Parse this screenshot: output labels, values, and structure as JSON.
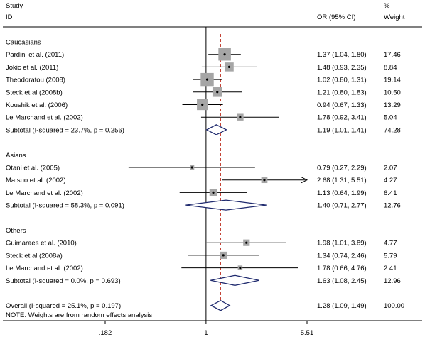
{
  "header": {
    "study": "Study",
    "id": "ID",
    "or_ci": "OR (95% CI)",
    "pct": "%",
    "weight": "Weight"
  },
  "note": "NOTE: Weights are from random effects analysis",
  "colors": {
    "box": "#a6a6a6",
    "diamond": "#1f2a6e",
    "overall_line": "#c0392b",
    "rule": "#000000"
  },
  "chart_data": {
    "type": "forest",
    "scale": "log",
    "xlim": [
      0.182,
      5.51
    ],
    "xticks": [
      {
        "value": 0.182,
        "label": ".182"
      },
      {
        "value": 1,
        "label": "1"
      },
      {
        "value": 5.51,
        "label": "5.51"
      }
    ],
    "null_value": 1,
    "overall_or": 1.28,
    "groups": [
      {
        "name": "Caucasians",
        "studies": [
          {
            "id": "Pardini et al. (2011)",
            "or": 1.37,
            "lo": 1.04,
            "hi": 1.8,
            "ci_text": "1.37 (1.04, 1.80)",
            "weight": "17.46"
          },
          {
            "id": "Jokic et al. (2011)",
            "or": 1.48,
            "lo": 0.93,
            "hi": 2.35,
            "ci_text": "1.48 (0.93, 2.35)",
            "weight": "8.84"
          },
          {
            "id": "Theodoratou (2008)",
            "or": 1.02,
            "lo": 0.8,
            "hi": 1.31,
            "ci_text": "1.02 (0.80, 1.31)",
            "weight": "19.14"
          },
          {
            "id": "Steck et al (2008b)",
            "or": 1.21,
            "lo": 0.8,
            "hi": 1.83,
            "ci_text": "1.21 (0.80, 1.83)",
            "weight": "10.50"
          },
          {
            "id": "Koushik et al. (2006)",
            "or": 0.94,
            "lo": 0.67,
            "hi": 1.33,
            "ci_text": "0.94 (0.67, 1.33)",
            "weight": "13.29"
          },
          {
            "id": "Le Marchand et al. (2002)",
            "or": 1.78,
            "lo": 0.92,
            "hi": 3.41,
            "ci_text": "1.78 (0.92, 3.41)",
            "weight": "5.04"
          }
        ],
        "subtotal": {
          "label": "Subtotal  (I-squared = 23.7%, p = 0.256)",
          "or": 1.19,
          "lo": 1.01,
          "hi": 1.41,
          "ci_text": "1.19 (1.01, 1.41)",
          "weight": "74.28"
        }
      },
      {
        "name": "Asians",
        "studies": [
          {
            "id": "Otani et al. (2005)",
            "or": 0.79,
            "lo": 0.27,
            "hi": 2.29,
            "ci_text": "0.79 (0.27, 2.29)",
            "weight": "2.07"
          },
          {
            "id": "Matsuo et al. (2002)",
            "or": 2.68,
            "lo": 1.31,
            "hi": 5.51,
            "ci_text": "2.68 (1.31, 5.51)",
            "weight": "4.27",
            "arrow_right": true
          },
          {
            "id": "Le Marchand et al. (2002)",
            "or": 1.13,
            "lo": 0.64,
            "hi": 1.99,
            "ci_text": "1.13 (0.64, 1.99)",
            "weight": "6.41"
          }
        ],
        "subtotal": {
          "label": "Subtotal  (I-squared = 58.3%, p = 0.091)",
          "or": 1.4,
          "lo": 0.71,
          "hi": 2.77,
          "ci_text": "1.40 (0.71, 2.77)",
          "weight": "12.76"
        }
      },
      {
        "name": "Others",
        "studies": [
          {
            "id": "Guimaraes et al. (2010)",
            "or": 1.98,
            "lo": 1.01,
            "hi": 3.89,
            "ci_text": "1.98 (1.01, 3.89)",
            "weight": "4.77"
          },
          {
            "id": "Steck et al (2008a)",
            "or": 1.34,
            "lo": 0.74,
            "hi": 2.46,
            "ci_text": "1.34 (0.74, 2.46)",
            "weight": "5.79"
          },
          {
            "id": "Le Marchand et al. (2002)",
            "or": 1.78,
            "lo": 0.66,
            "hi": 4.76,
            "ci_text": "1.78 (0.66, 4.76)",
            "weight": "2.41"
          }
        ],
        "subtotal": {
          "label": "Subtotal  (I-squared = 0.0%, p = 0.693)",
          "or": 1.63,
          "lo": 1.08,
          "hi": 2.45,
          "ci_text": "1.63 (1.08, 2.45)",
          "weight": "12.96"
        }
      }
    ],
    "overall": {
      "label": "Overall  (I-squared = 25.1%, p = 0.197)",
      "or": 1.28,
      "lo": 1.09,
      "hi": 1.49,
      "ci_text": "1.28 (1.09, 1.49)",
      "weight": "100.00"
    }
  }
}
